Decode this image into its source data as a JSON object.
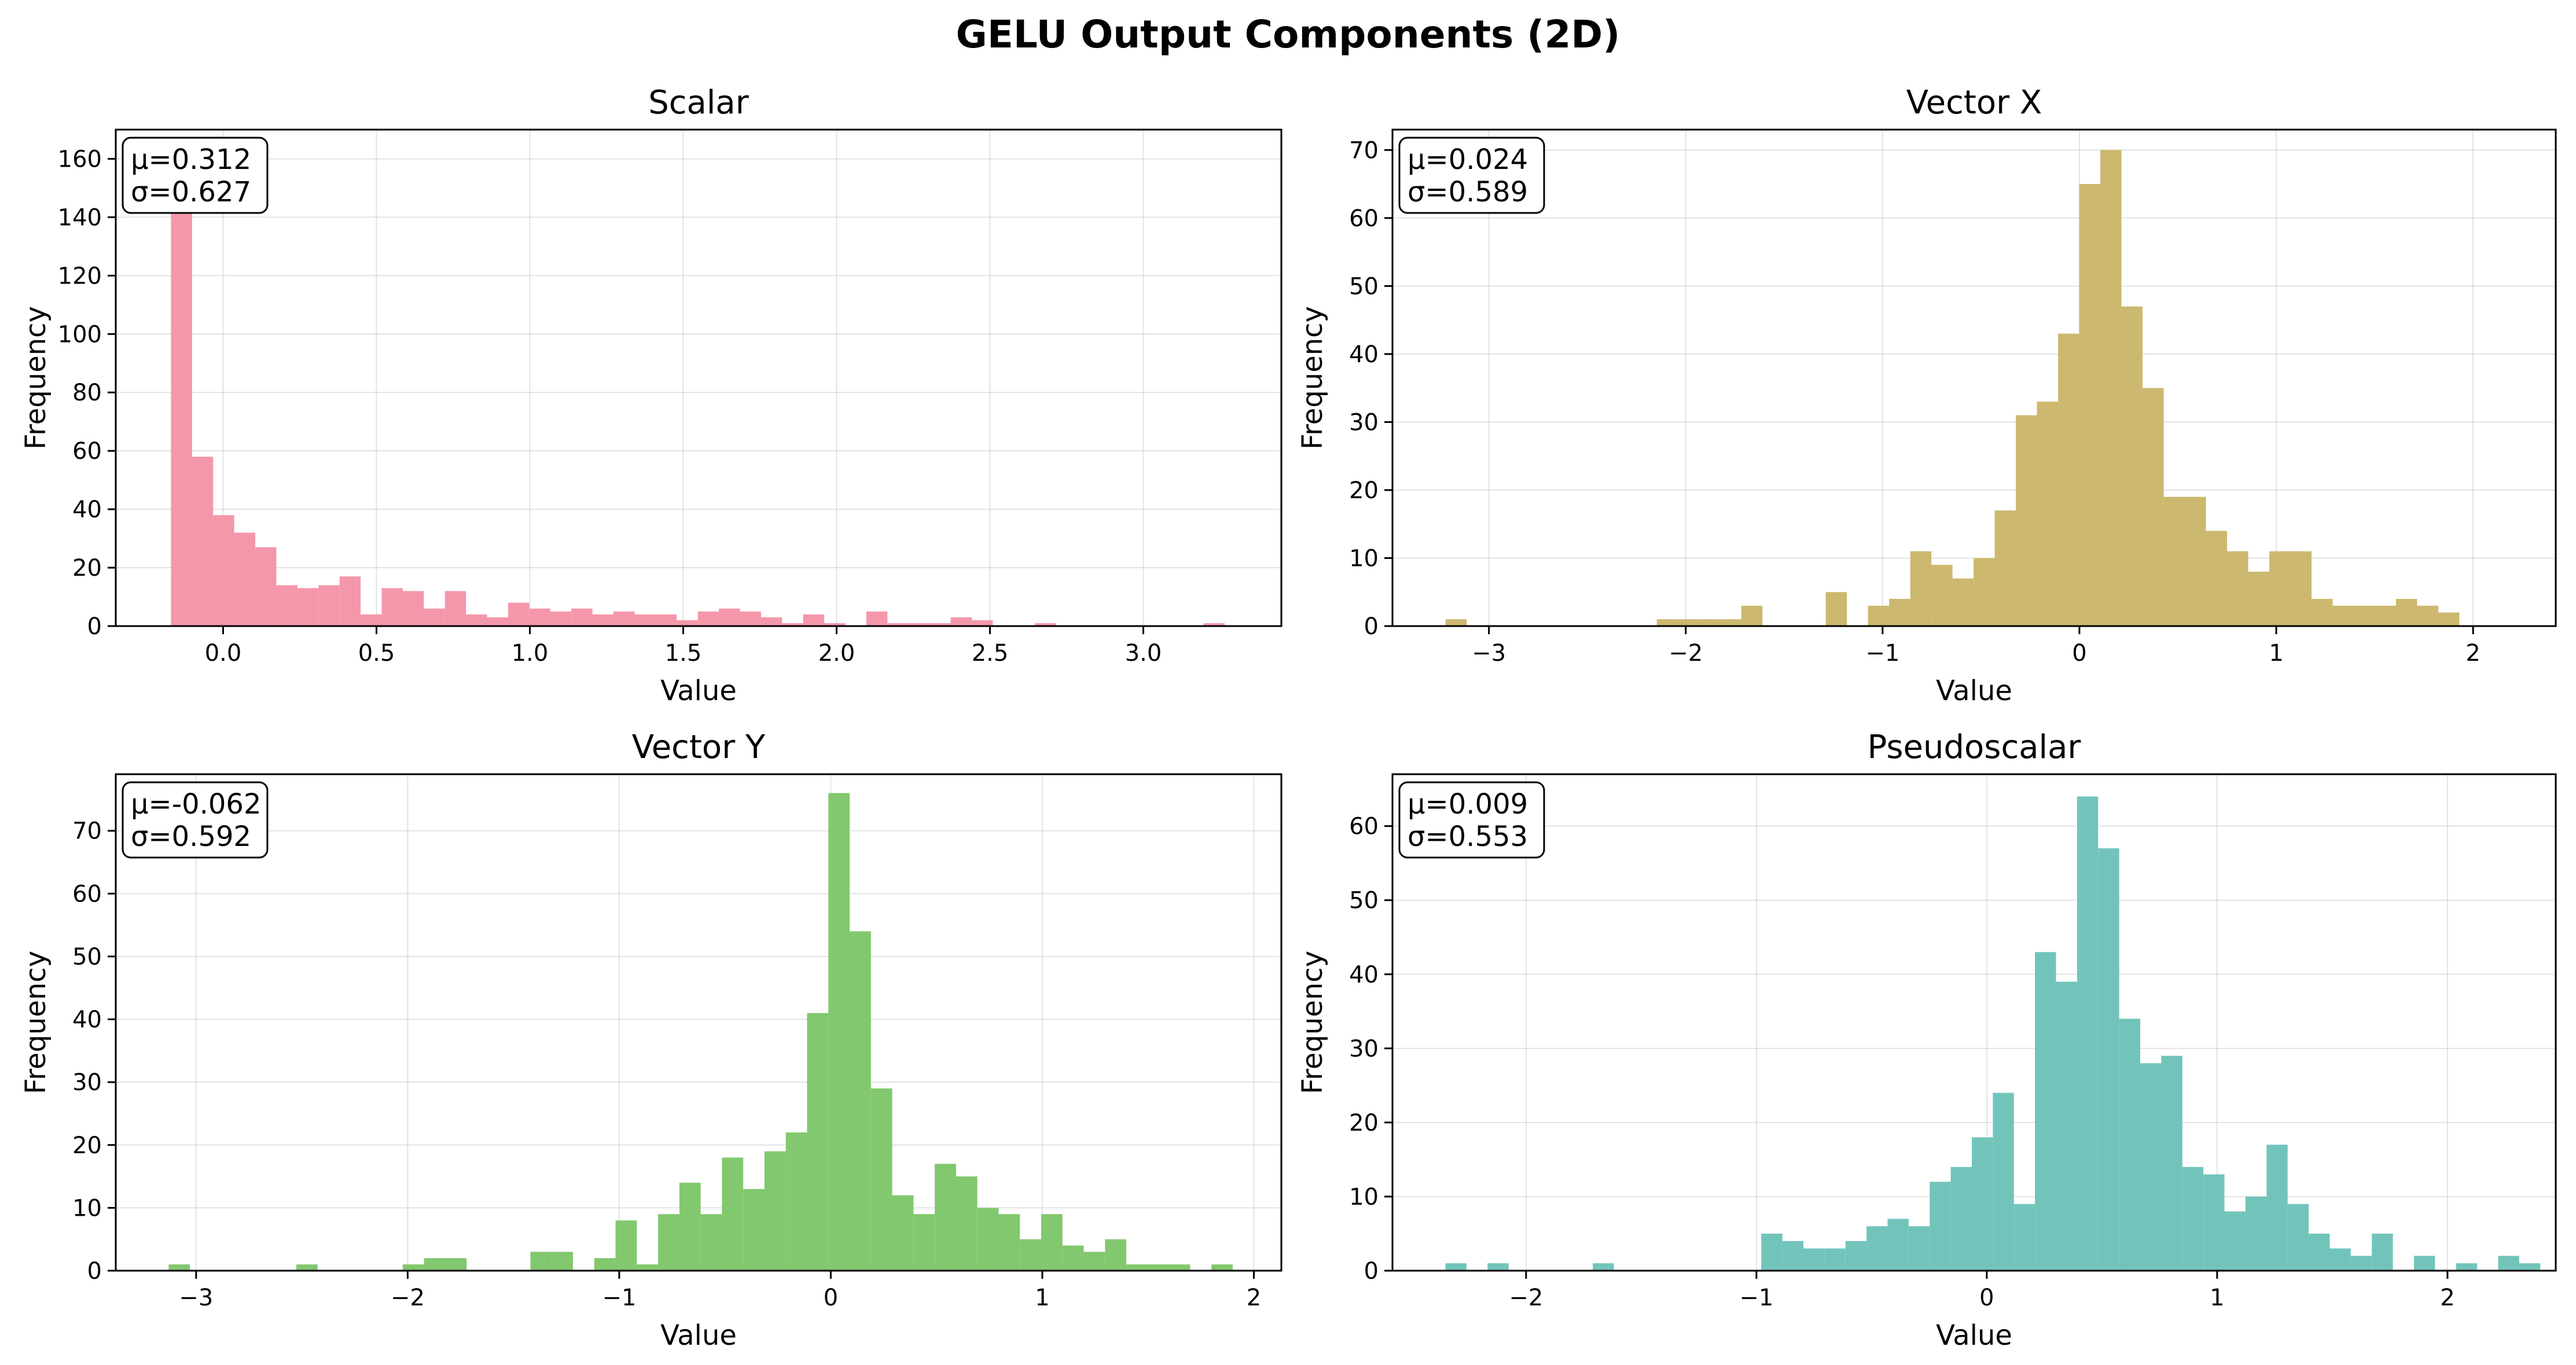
{
  "figure": {
    "title": "GELU Output Components (2D)"
  },
  "chart_data": [
    {
      "type": "bar",
      "title": "Scalar",
      "xlabel": "Value",
      "ylabel": "Frequency",
      "color": "#f497aa",
      "xlim": [
        -0.35,
        3.45
      ],
      "ylim": [
        0,
        170
      ],
      "xticks": [
        0.0,
        0.5,
        1.0,
        1.5,
        2.0,
        2.5,
        3.0
      ],
      "xtick_labels": [
        "0.0",
        "0.5",
        "1.0",
        "1.5",
        "2.0",
        "2.5",
        "3.0"
      ],
      "yticks": [
        0,
        20,
        40,
        60,
        80,
        100,
        120,
        140,
        160
      ],
      "ytick_labels": [
        "0",
        "20",
        "40",
        "60",
        "80",
        "100",
        "120",
        "140",
        "160"
      ],
      "stats": {
        "mean": "μ=0.312",
        "std": "σ=0.627"
      },
      "bins": {
        "start": -0.17,
        "width": 0.0687
      },
      "values": [
        162,
        58,
        38,
        32,
        27,
        14,
        13,
        14,
        17,
        4,
        13,
        12,
        6,
        12,
        4,
        3,
        8,
        6,
        5,
        6,
        4,
        5,
        4,
        4,
        2,
        5,
        6,
        5,
        3,
        1,
        4,
        1,
        0,
        5,
        1,
        1,
        1,
        3,
        2,
        0,
        0,
        1,
        0,
        0,
        0,
        0,
        0,
        0,
        0,
        1
      ]
    },
    {
      "type": "bar",
      "title": "Vector X",
      "xlabel": "Value",
      "ylabel": "Frequency",
      "color": "#ccb86e",
      "xlim": [
        -3.49,
        2.42
      ],
      "ylim": [
        0,
        73
      ],
      "xticks": [
        -3,
        -2,
        -1,
        0,
        1,
        2
      ],
      "xtick_labels": [
        "−3",
        "−2",
        "−1",
        "0",
        "1",
        "2"
      ],
      "yticks": [
        0,
        10,
        20,
        30,
        40,
        50,
        60,
        70
      ],
      "ytick_labels": [
        "0",
        "10",
        "20",
        "30",
        "40",
        "50",
        "60",
        "70"
      ],
      "stats": {
        "mean": "μ=0.024",
        "std": "σ=0.589"
      },
      "bins": {
        "start": -3.22,
        "width": 0.1073
      },
      "values": [
        1,
        0,
        0,
        0,
        0,
        0,
        0,
        0,
        0,
        0,
        1,
        1,
        1,
        1,
        3,
        0,
        0,
        0,
        5,
        0,
        3,
        4,
        11,
        9,
        7,
        10,
        17,
        31,
        33,
        43,
        65,
        70,
        47,
        35,
        19,
        19,
        14,
        11,
        8,
        11,
        11,
        4,
        3,
        3,
        3,
        4,
        3,
        2,
        0,
        0,
        0,
        0,
        0,
        0,
        0,
        0,
        0,
        1
      ]
    },
    {
      "type": "bar",
      "title": "Vector Y",
      "xlabel": "Value",
      "ylabel": "Frequency",
      "color": "#82c86e",
      "xlim": [
        -3.38,
        2.13
      ],
      "ylim": [
        0,
        79
      ],
      "xticks": [
        -3,
        -2,
        -1,
        0,
        1,
        2
      ],
      "xtick_labels": [
        "−3",
        "−2",
        "−1",
        "0",
        "1",
        "2"
      ],
      "yticks": [
        0,
        10,
        20,
        30,
        40,
        50,
        60,
        70
      ],
      "ytick_labels": [
        "0",
        "10",
        "20",
        "30",
        "40",
        "50",
        "60",
        "70"
      ],
      "stats": {
        "mean": "μ=-0.062",
        "std": "σ=0.592"
      },
      "bins": {
        "start": -3.13,
        "width": 0.1006
      },
      "values": [
        1,
        0,
        0,
        0,
        0,
        0,
        1,
        0,
        0,
        0,
        0,
        1,
        2,
        2,
        0,
        0,
        0,
        3,
        3,
        0,
        2,
        8,
        1,
        9,
        14,
        9,
        18,
        13,
        19,
        22,
        41,
        76,
        54,
        29,
        12,
        9,
        17,
        15,
        10,
        9,
        5,
        9,
        4,
        3,
        5,
        1,
        1,
        1,
        0,
        1
      ]
    },
    {
      "type": "bar",
      "title": "Pseudoscalar",
      "xlabel": "Value",
      "ylabel": "Frequency",
      "color": "#72c4bb",
      "xlim": [
        -2.58,
        2.47
      ],
      "ylim": [
        0,
        67
      ],
      "xticks": [
        -2,
        -1,
        0,
        1,
        2
      ],
      "xtick_labels": [
        "−2",
        "−1",
        "0",
        "1",
        "2"
      ],
      "yticks": [
        0,
        10,
        20,
        30,
        40,
        50,
        60
      ],
      "ytick_labels": [
        "0",
        "10",
        "20",
        "30",
        "40",
        "50",
        "60"
      ],
      "stats": {
        "mean": "μ=0.009",
        "std": "σ=0.553"
      },
      "bins": {
        "start": -2.35,
        "width": 0.0914
      },
      "values": [
        1,
        0,
        1,
        0,
        0,
        0,
        0,
        1,
        0,
        0,
        0,
        0,
        0,
        0,
        0,
        5,
        4,
        3,
        3,
        4,
        6,
        7,
        6,
        12,
        14,
        18,
        24,
        9,
        43,
        39,
        64,
        57,
        34,
        28,
        29,
        14,
        13,
        8,
        10,
        17,
        9,
        5,
        3,
        2,
        5,
        0,
        2,
        0,
        1,
        0,
        2,
        1,
        0,
        0,
        0,
        0,
        0,
        2
      ]
    }
  ]
}
